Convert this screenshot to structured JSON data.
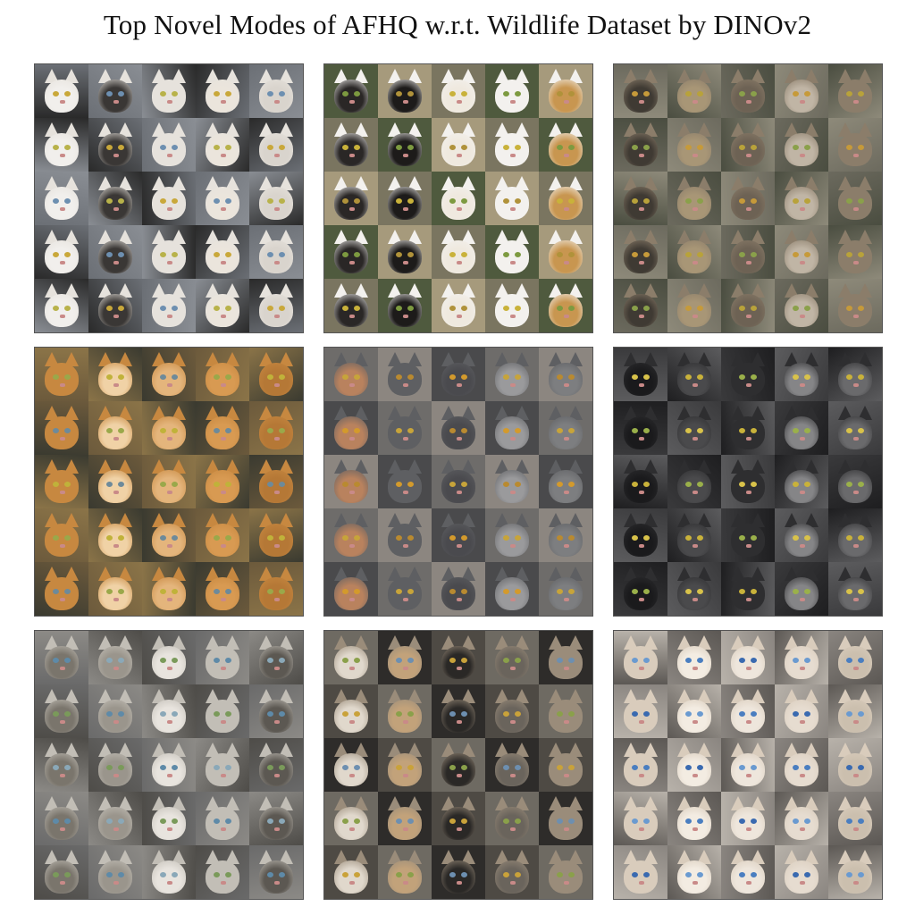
{
  "title": "Top Novel Modes of AFHQ w.r.t. Wildlife Dataset by DINOv2",
  "panels": [
    {
      "theme": "white and black-and-white cats",
      "bg": [
        "#2a2a2a",
        "#6b6f75",
        "#8a8e94"
      ],
      "fur": [
        "#f1efec",
        "#e6e2dc",
        "#d9d4cd",
        "#3a3735",
        "#ebe5dc"
      ],
      "eyes": [
        "#c9a83a",
        "#6d8fb0",
        "#b8b24a"
      ]
    },
    {
      "theme": "black and white tuxedo cats",
      "bg": [
        "#7a7560",
        "#4f5a3e",
        "#a69a7c"
      ],
      "fur": [
        "#1d1b1a",
        "#f3f1ee",
        "#2a2726",
        "#efe9df",
        "#c89650"
      ],
      "eyes": [
        "#c9b23a",
        "#7d9a40",
        "#b0923a"
      ]
    },
    {
      "theme": "tabby and long-haired cats",
      "bg": [
        "#4a4d40",
        "#6c6a5e",
        "#8e8a7a"
      ],
      "fur": [
        "#6d6254",
        "#8b7d6a",
        "#a89676",
        "#c0b5a5",
        "#3f3a33"
      ],
      "eyes": [
        "#b8a23a",
        "#8aa04a",
        "#c69a3a"
      ]
    },
    {
      "theme": "orange and ginger cats",
      "bg": [
        "#6c5a3c",
        "#8b7448",
        "#3a3a30"
      ],
      "fur": [
        "#d89a52",
        "#c78840",
        "#e4b57c",
        "#b57836",
        "#f0d2a6"
      ],
      "eyes": [
        "#9aa84a",
        "#c0b23a",
        "#6d8a9a"
      ]
    },
    {
      "theme": "gray british shorthair cats",
      "bg": [
        "#4a4a4c",
        "#6e6c6a",
        "#8c8680"
      ],
      "fur": [
        "#7d7e80",
        "#5e5f62",
        "#9a9a9c",
        "#b9825e",
        "#4a4a4e"
      ],
      "eyes": [
        "#d39a2c",
        "#c7a43a",
        "#b98a30"
      ]
    },
    {
      "theme": "black and dark gray cats",
      "bg": [
        "#1e1e20",
        "#3a3a3c",
        "#5c5c5e"
      ],
      "fur": [
        "#1a1a1c",
        "#2e2e30",
        "#6a6a6c",
        "#4a4a4c",
        "#858587"
      ],
      "eyes": [
        "#c9b23a",
        "#9ab04a",
        "#d8c24a"
      ]
    },
    {
      "theme": "tabby kittens",
      "bg": [
        "#6a6a6a",
        "#8c8a86",
        "#4e4c48"
      ],
      "fur": [
        "#9a958c",
        "#c2beb6",
        "#7a756c",
        "#e8e4de",
        "#5c5852"
      ],
      "eyes": [
        "#5e8aa8",
        "#8aa8b8",
        "#7a9a5a"
      ]
    },
    {
      "theme": "mixed kittens and dark cats",
      "bg": [
        "#4e4a44",
        "#6e6a62",
        "#2e2c2a"
      ],
      "fur": [
        "#2a2826",
        "#9a8c7a",
        "#c2a27a",
        "#6a645c",
        "#e0d8cc"
      ],
      "eyes": [
        "#c9a23a",
        "#8aa04a",
        "#6d8fb0"
      ]
    },
    {
      "theme": "siamese cats",
      "bg": [
        "#8a8580",
        "#b8b2aa",
        "#5c5854"
      ],
      "fur": [
        "#e6dcd0",
        "#d9ccbc",
        "#eee6dc",
        "#cbbfae",
        "#f3ece2"
      ],
      "eyes": [
        "#4a7ec0",
        "#3a6ab0",
        "#6a9ad0"
      ]
    }
  ]
}
